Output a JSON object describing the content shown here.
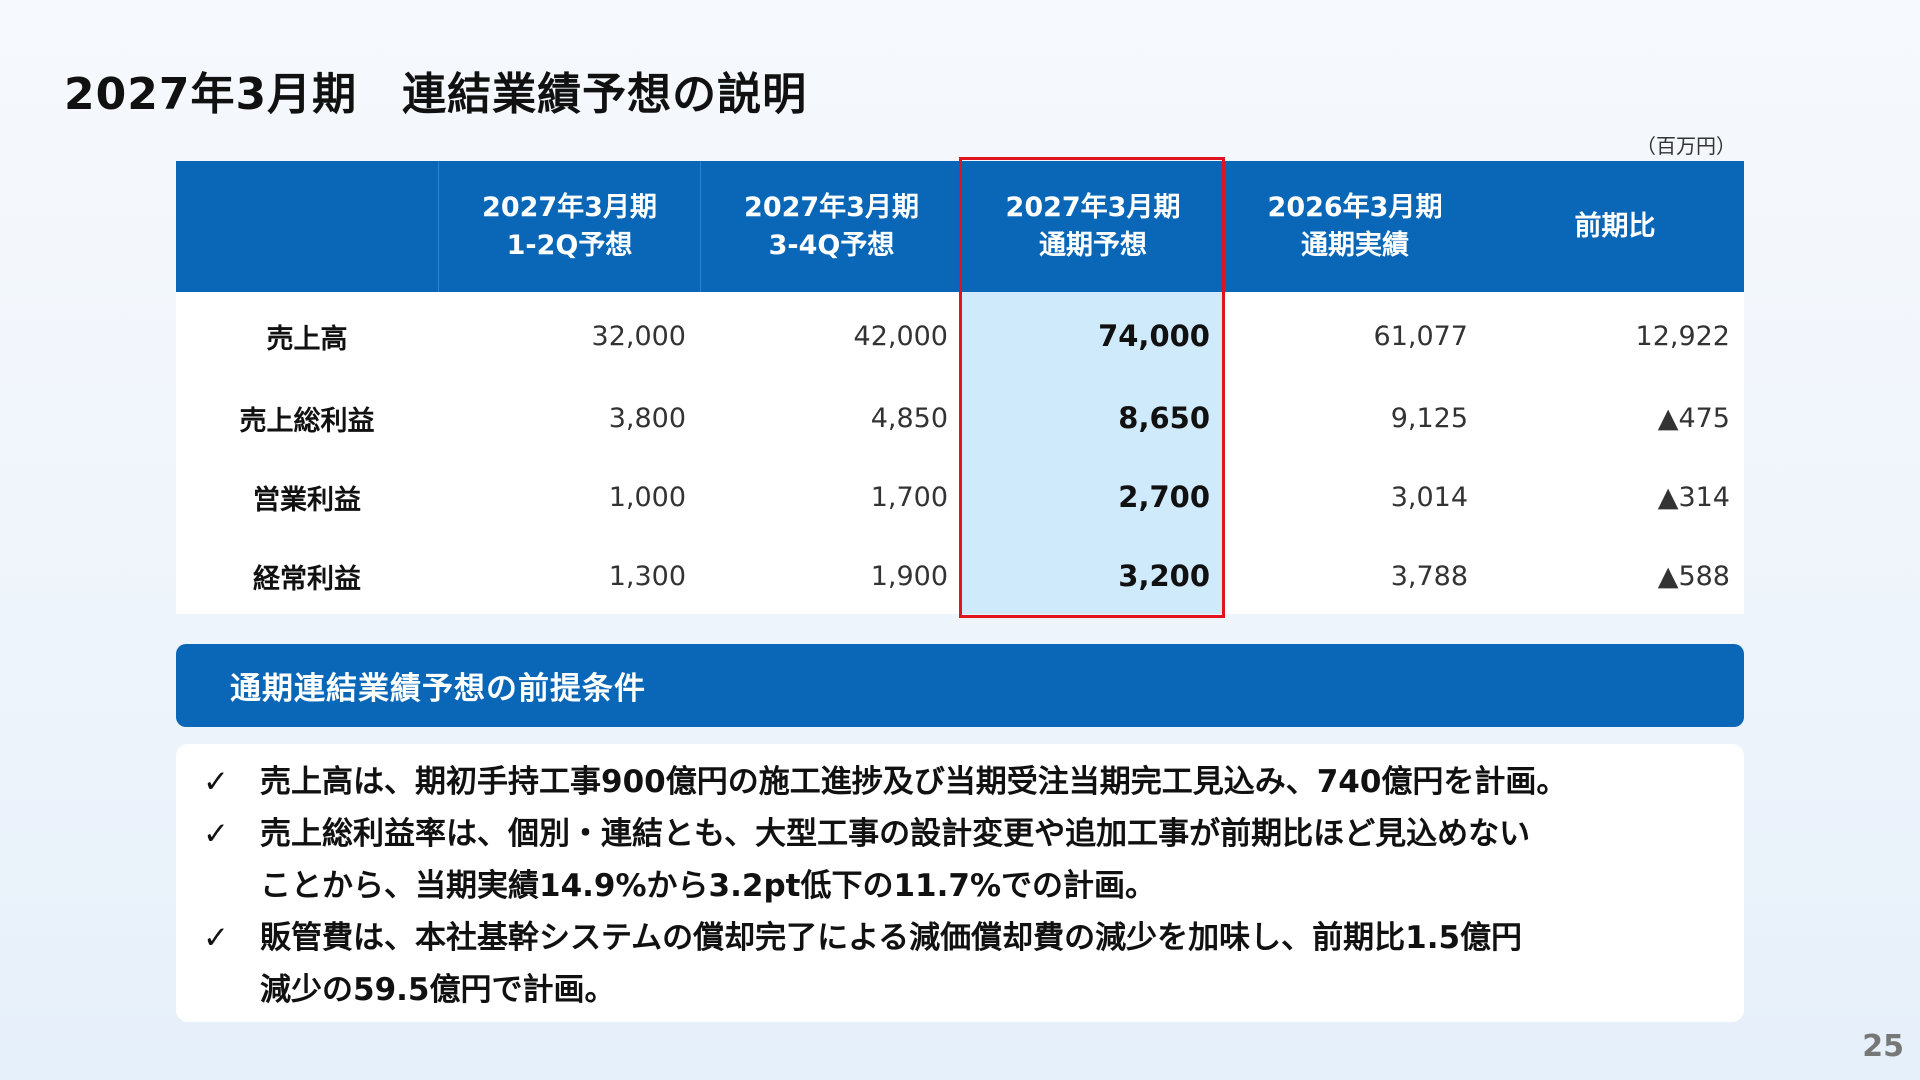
{
  "title": "2027年3月期　連結業績予想の説明",
  "unit": "（百万円）",
  "table": {
    "headers": [
      {
        "line1": "",
        "line2": ""
      },
      {
        "line1": "2027年3月期",
        "line2": "1-2Q予想"
      },
      {
        "line1": "2027年3月期",
        "line2": "3-4Q予想"
      },
      {
        "line1": "2027年3月期",
        "line2": "通期予想"
      },
      {
        "line1": "2026年3月期",
        "line2": "通期実績"
      },
      {
        "line1": "前期比",
        "line2": ""
      }
    ],
    "rows": [
      {
        "label": "売上高",
        "values": [
          "32,000",
          "42,000",
          "74,000",
          "61,077",
          "12,922"
        ]
      },
      {
        "label": "売上総利益",
        "values": [
          "3,800",
          "4,850",
          "8,650",
          "9,125",
          "▲475"
        ]
      },
      {
        "label": "営業利益",
        "values": [
          "1,000",
          "1,700",
          "2,700",
          "3,014",
          "▲314"
        ]
      },
      {
        "label": "経常利益",
        "values": [
          "1,300",
          "1,900",
          "3,200",
          "3,788",
          "▲588"
        ]
      }
    ],
    "highlight_color": "#e0141e"
  },
  "assumptions": {
    "heading": "通期連結業績予想の前提条件",
    "check_mark": "✓",
    "items": [
      {
        "lines": [
          "売上高は、期初手持工事900億円の施工進捗及び当期受注当期完工見込み、740億円を計画。"
        ]
      },
      {
        "lines": [
          "売上総利益率は、個別・連結とも、大型工事の設計変更や追加工事が前期比ほど見込めない",
          "ことから、当期実績14.9%から3.2pt低下の11.7%での計画。"
        ]
      },
      {
        "lines": [
          "販管費は、本社基幹システムの償却完了による減価償却費の減少を加味し、前期比1.5億円",
          "減少の59.5億円で計画。"
        ]
      }
    ]
  },
  "page_number": "25",
  "colors": {
    "header_blue": "#0a67b7",
    "highlight_fill": "#cfeafb",
    "frame_red": "#e0141e"
  }
}
